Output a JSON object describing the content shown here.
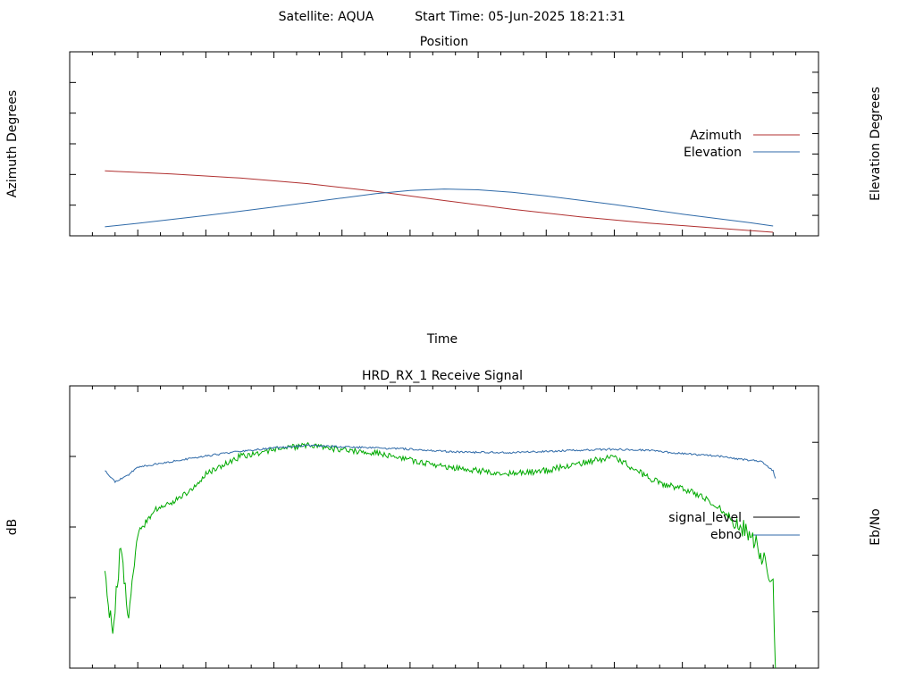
{
  "header": {
    "satellite_label": "Satellite: AQUA",
    "start_time_label": "Start Time: 05-Jun-2025 18:21:31"
  },
  "colors": {
    "azimuth": "#b03030",
    "elevation": "#2f6aa8",
    "signal_level": "#00aa00",
    "ebno": "#2f6aa8",
    "signal_level_legend": "#000000"
  },
  "chart_data": [
    {
      "type": "line",
      "title": "Position",
      "xlabel": "Time",
      "ylabel": "Azimuth Degrees",
      "ylabel_right": "Elevation Degrees",
      "xlim": [
        "18:21:00",
        "18:32:00"
      ],
      "ylim": [
        0,
        360
      ],
      "ylim_right": [
        0,
        90
      ],
      "x_ticks": [
        "18:21:00",
        "18:22:00",
        "18:23:00",
        "18:24:00",
        "18:25:00",
        "18:26:00",
        "18:27:00",
        "18:28:00",
        "18:29:00",
        "18:30:00",
        "18:31:00",
        "18:32:00"
      ],
      "y_ticks": [
        0,
        60,
        120,
        180,
        240,
        300,
        360
      ],
      "y_ticks_right": [
        0,
        10,
        20,
        30,
        40,
        50,
        60,
        70,
        80,
        90
      ],
      "legend_position": "right",
      "grid": false,
      "series": [
        {
          "name": "Azimuth",
          "axis": "left",
          "x": [
            "18:21:31",
            "18:22:30",
            "18:23:30",
            "18:24:30",
            "18:25:30",
            "18:26:30",
            "18:27:30",
            "18:28:30",
            "18:29:30",
            "18:30:30",
            "18:31:20"
          ],
          "values": [
            127,
            121,
            113,
            102,
            87,
            69,
            52,
            37,
            25,
            15,
            7
          ]
        },
        {
          "name": "Elevation",
          "axis": "right",
          "x": [
            "18:21:31",
            "18:22:00",
            "18:23:00",
            "18:24:00",
            "18:25:00",
            "18:25:30",
            "18:26:00",
            "18:26:30",
            "18:27:00",
            "18:27:30",
            "18:28:00",
            "18:29:00",
            "18:30:00",
            "18:31:00",
            "18:31:20"
          ],
          "values": [
            4.4,
            6.1,
            9.9,
            14.1,
            18.5,
            20.6,
            22.2,
            22.9,
            22.5,
            21.3,
            19.5,
            15.3,
            10.6,
            6.4,
            4.8
          ]
        }
      ]
    },
    {
      "type": "line",
      "title": "HRD_RX_1 Receive Signal",
      "xlabel": "",
      "ylabel": "dB",
      "ylabel_right": "Eb/No",
      "xlim": [
        "18:21:00",
        "18:32:00"
      ],
      "ylim": [
        -32,
        -24
      ],
      "ylim_right": [
        0,
        25
      ],
      "y_ticks": [
        -32,
        -30,
        -28,
        -26,
        -24
      ],
      "y_ticks_right": [
        0,
        5,
        10,
        15,
        20,
        25
      ],
      "legend_position": "right",
      "grid": false,
      "series": [
        {
          "name": "signal_level",
          "axis": "left",
          "x": [
            "18:21:31",
            "18:21:38",
            "18:21:45",
            "18:21:52",
            "18:22:00",
            "18:22:15",
            "18:22:30",
            "18:22:45",
            "18:23:00",
            "18:23:30",
            "18:24:00",
            "18:24:30",
            "18:25:00",
            "18:25:30",
            "18:26:00",
            "18:26:30",
            "18:27:00",
            "18:27:30",
            "18:28:00",
            "18:28:30",
            "18:29:00",
            "18:29:15",
            "18:29:30",
            "18:29:45",
            "18:30:00",
            "18:30:15",
            "18:30:30",
            "18:30:45",
            "18:31:00",
            "18:31:10",
            "18:31:20",
            "18:31:22"
          ],
          "values": [
            -29.5,
            -31.0,
            -28.5,
            -30.5,
            -28.2,
            -27.5,
            -27.3,
            -27.0,
            -26.5,
            -26.0,
            -25.8,
            -25.7,
            -25.8,
            -25.9,
            -26.1,
            -26.3,
            -26.4,
            -26.5,
            -26.4,
            -26.2,
            -26.0,
            -26.3,
            -26.6,
            -26.8,
            -26.9,
            -27.1,
            -27.4,
            -27.8,
            -28.2,
            -28.8,
            -29.5,
            -32.0
          ]
        },
        {
          "name": "ebno",
          "axis": "right",
          "x": [
            "18:21:31",
            "18:21:40",
            "18:21:50",
            "18:22:00",
            "18:22:30",
            "18:23:00",
            "18:23:30",
            "18:24:00",
            "18:24:30",
            "18:25:00",
            "18:25:30",
            "18:26:00",
            "18:26:30",
            "18:27:00",
            "18:27:30",
            "18:28:00",
            "18:28:30",
            "18:29:00",
            "18:29:30",
            "18:30:00",
            "18:30:30",
            "18:31:00",
            "18:31:10",
            "18:31:20",
            "18:31:22"
          ],
          "values": [
            17.5,
            16.5,
            17.0,
            17.8,
            18.3,
            18.8,
            19.2,
            19.5,
            19.7,
            19.6,
            19.5,
            19.4,
            19.2,
            19.1,
            19.1,
            19.2,
            19.3,
            19.4,
            19.3,
            19.0,
            18.8,
            18.4,
            18.3,
            17.5,
            16.8
          ]
        }
      ]
    }
  ]
}
